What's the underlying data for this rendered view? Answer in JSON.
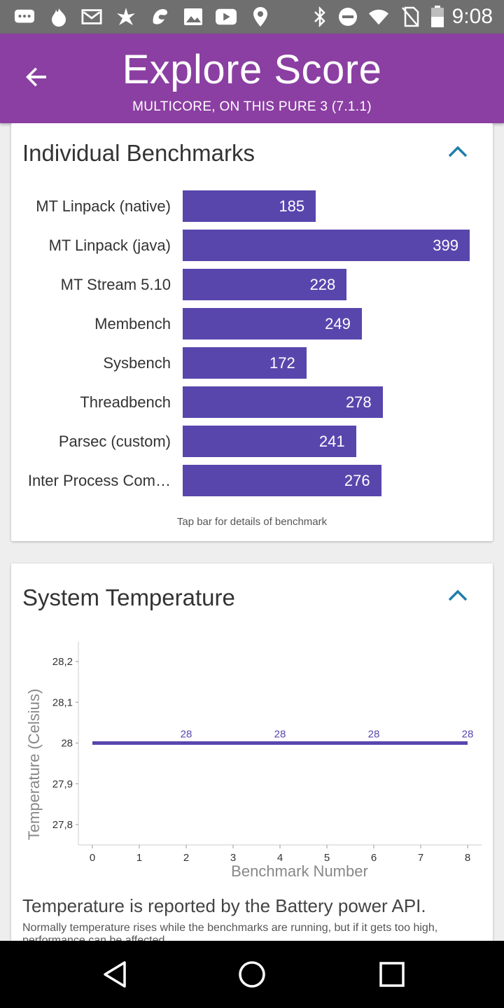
{
  "status_bar": {
    "time": "9:08",
    "left_icons": [
      "chat-icon",
      "fire-icon",
      "mail-icon",
      "star-burst-icon",
      "dragon-icon",
      "image-icon",
      "youtube-icon",
      "location-icon"
    ],
    "right_icons": [
      "bluetooth-icon",
      "do-not-disturb-icon",
      "wifi-icon",
      "no-sim-icon",
      "battery-icon"
    ]
  },
  "app_bar": {
    "title": "Explore Score",
    "subtitle": "MULTICORE, ON THIS PURE 3 (7.1.1)"
  },
  "benchmarks": {
    "title": "Individual Benchmarks",
    "hint": "Tap bar for details of benchmark",
    "bar_color": "#5946ad",
    "items": [
      {
        "label": "MT Linpack (native)",
        "value": 185
      },
      {
        "label": "MT Linpack (java)",
        "value": 399
      },
      {
        "label": "MT Stream 5.10",
        "value": 228
      },
      {
        "label": "Membench",
        "value": 249
      },
      {
        "label": "Sysbench",
        "value": 172
      },
      {
        "label": "Threadbench",
        "value": 278
      },
      {
        "label": "Parsec (custom)",
        "value": 241
      },
      {
        "label": "Inter Process Com…",
        "value": 276
      }
    ]
  },
  "temperature": {
    "title": "System Temperature",
    "note": "Temperature is reported by the Battery power API.",
    "description": "Normally temperature rises while the benchmarks are running, but if it gets too high, performance can be affected."
  },
  "chart_data": {
    "type": "line",
    "xlabel": "Benchmark Number",
    "ylabel": "Temperature (Celsius)",
    "x_ticks": [
      "0",
      "1",
      "2",
      "3",
      "4",
      "5",
      "6",
      "7",
      "8"
    ],
    "y_ticks": [
      "28,2",
      "28,1",
      "28",
      "27,9",
      "27,8"
    ],
    "xlim": [
      0,
      8
    ],
    "ylim": [
      27.75,
      28.25
    ],
    "series": [
      {
        "x": [
          0,
          2,
          4,
          6,
          8
        ],
        "y": [
          28,
          28,
          28,
          28,
          28
        ]
      }
    ],
    "data_labels": [
      {
        "x": 2,
        "text": "28"
      },
      {
        "x": 4,
        "text": "28"
      },
      {
        "x": 6,
        "text": "28"
      },
      {
        "x": 8,
        "text": "28"
      }
    ],
    "line_color": "#5946ad"
  }
}
